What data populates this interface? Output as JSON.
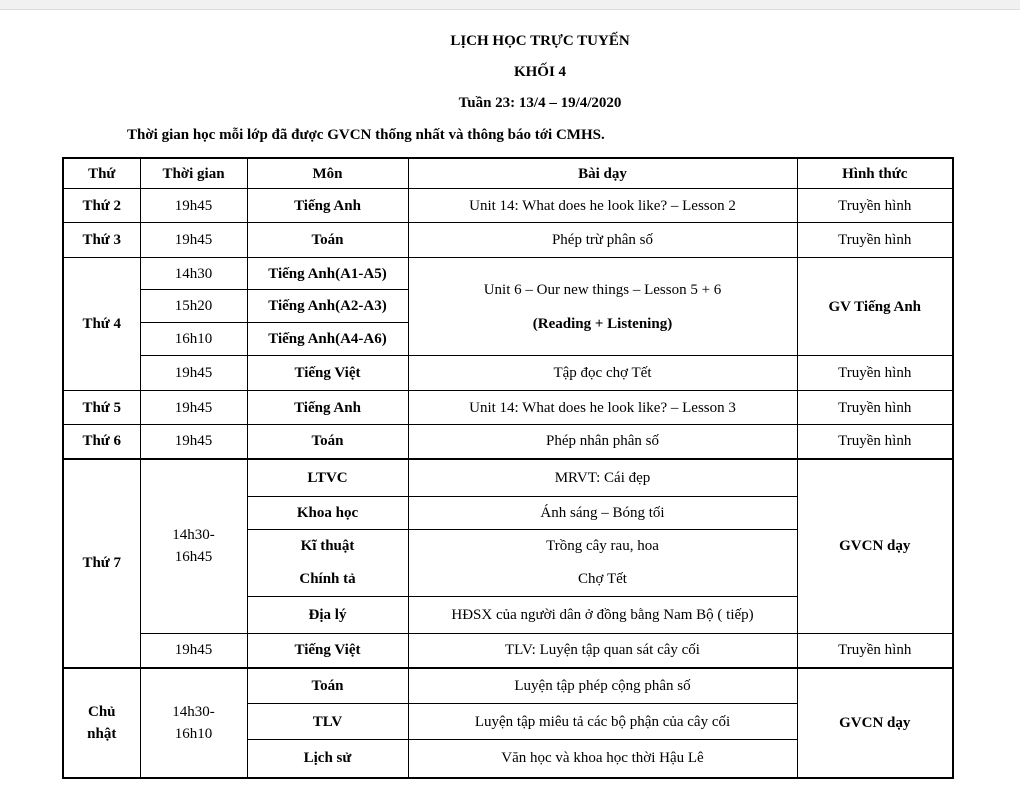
{
  "title": "LỊCH HỌC TRỰC TUYẾN",
  "subtitle": "KHỐI 4",
  "week": "Tuần 23: 13/4 – 19/4/2020",
  "note": "Thời gian học mỗi lớp đã được GVCN thống nhất và thông báo tới CMHS.",
  "headers": [
    "Thứ",
    "Thời gian",
    "Môn",
    "Bài dạy",
    "Hình thức"
  ],
  "thu2": {
    "day": "Thứ 2",
    "time": "19h45",
    "subject": "Tiếng Anh",
    "lesson": "Unit 14: What does he look like? – Lesson 2",
    "form": "Truyền hình"
  },
  "thu3": {
    "day": "Thứ 3",
    "time": "19h45",
    "subject": "Toán",
    "lesson": "Phép trừ phân số",
    "form": "Truyền hình"
  },
  "thu4": {
    "day": "Thứ 4",
    "english": [
      {
        "time": "14h30",
        "subject": "Tiếng Anh(A1-A5)"
      },
      {
        "time": "15h20",
        "subject": "Tiếng Anh(A2-A3)"
      },
      {
        "time": "16h10",
        "subject": "Tiếng Anh(A4-A6)"
      }
    ],
    "english_lesson_1": "Unit 6 – Our new things – Lesson 5 + 6",
    "english_lesson_2": "(Reading + Listening)",
    "english_form": "GV Tiếng Anh",
    "evening": {
      "time": "19h45",
      "subject": "Tiếng Việt",
      "lesson": "Tập đọc chợ Tết",
      "form": "Truyền hình"
    }
  },
  "thu5": {
    "day": "Thứ 5",
    "time": "19h45",
    "subject": "Tiếng Anh",
    "lesson": "Unit 14: What does he look like? – Lesson 3",
    "form": "Truyền hình"
  },
  "thu6": {
    "day": "Thứ 6",
    "time": "19h45",
    "subject": "Toán",
    "lesson": "Phép nhân phân số",
    "form": "Truyền hình"
  },
  "thu7": {
    "day": "Thứ 7",
    "time_1": "14h30-",
    "time_2": "16h45",
    "form": "GVCN dạy",
    "rows": [
      {
        "subject": "LTVC",
        "lesson": "MRVT: Cái đẹp"
      },
      {
        "subject": "Khoa học",
        "lesson": "Ánh sáng – Bóng tối"
      },
      {
        "subject": "Kĩ thuật",
        "lesson": "Trồng cây rau, hoa"
      },
      {
        "subject": "Chính tả",
        "lesson": "Chợ Tết"
      },
      {
        "subject": "Địa lý",
        "lesson": "HĐSX của người dân ở đồng bằng Nam Bộ ( tiếp)"
      }
    ],
    "evening": {
      "time": "19h45",
      "subject": "Tiếng Việt",
      "lesson": "TLV: Luyện tập quan sát cây cối",
      "form": "Truyền hình"
    }
  },
  "cn": {
    "day_1": "Chủ",
    "day_2": "nhật",
    "time_1": "14h30-",
    "time_2": "16h10",
    "form": "GVCN dạy",
    "rows": [
      {
        "subject": "Toán",
        "lesson": "Luyện tập phép cộng phân số"
      },
      {
        "subject": "TLV",
        "lesson": "Luyện tập miêu tả các bộ phận của cây cối"
      },
      {
        "subject": "Lịch sử",
        "lesson": "Văn học và khoa học thời Hậu Lê"
      }
    ]
  }
}
